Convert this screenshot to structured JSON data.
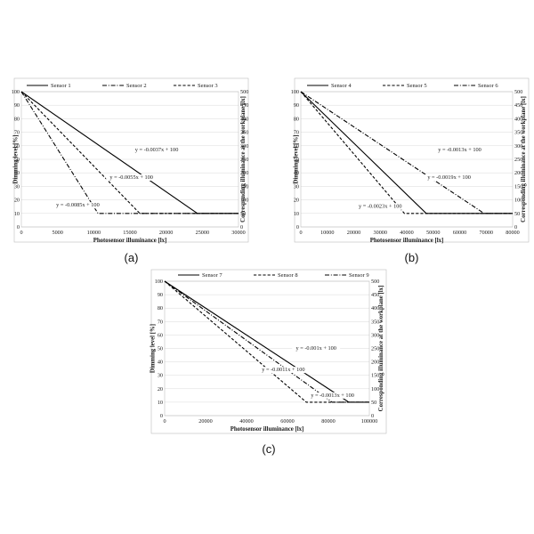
{
  "chart_data": [
    {
      "type": "line",
      "panel_label": "(a)",
      "xlabel": "Photosensor illuminance [lx]",
      "ylabel": "Dimming level [%]",
      "y2label": "Corresponding illuminance at the workplane [lx]",
      "xlim": [
        0,
        30000
      ],
      "ylim": [
        0,
        100
      ],
      "y2lim": [
        0,
        500
      ],
      "x_ticks": [
        0,
        5000,
        10000,
        15000,
        20000,
        25000,
        30000
      ],
      "y_ticks": [
        0,
        10,
        20,
        30,
        40,
        50,
        60,
        70,
        80,
        90,
        100
      ],
      "y2_ticks": [
        0,
        50,
        100,
        150,
        200,
        250,
        300,
        350,
        400,
        450,
        500
      ],
      "x_tick_labels": [
        "0",
        "5000",
        "10000",
        "15000",
        "20000",
        "25000",
        "30000"
      ],
      "y_tick_labels": [
        "0",
        "10",
        "20",
        "30",
        "40",
        "50",
        "60",
        "70",
        "80",
        "90",
        "100"
      ],
      "y2_tick_labels": [
        "0",
        "50",
        "100",
        "150",
        "200",
        "250",
        "300",
        "350",
        "400",
        "450",
        "500"
      ],
      "legend_position": "top",
      "series": [
        {
          "name": "Sensor 1",
          "style": "solid",
          "x": [
            0,
            24324,
            30000
          ],
          "y": [
            100,
            10,
            10
          ]
        },
        {
          "name": "Sensor 2",
          "style": "dashdot",
          "x": [
            0,
            10588,
            30000
          ],
          "y": [
            100,
            10,
            10
          ]
        },
        {
          "name": "Sensor 3",
          "style": "dashed",
          "x": [
            0,
            16364,
            30000
          ],
          "y": [
            100,
            10,
            10
          ]
        }
      ],
      "annotations": [
        {
          "text": "y = -0.0037x + 100",
          "x": 18700,
          "y": 56
        },
        {
          "text": "y = -0.0055x + 100",
          "x": 15200,
          "y": 35.5
        },
        {
          "text": "y = -0.0085x + 100",
          "x": 7800,
          "y": 15
        }
      ]
    },
    {
      "type": "line",
      "panel_label": "(b)",
      "xlabel": "Photosensor illuminance [lx]",
      "ylabel": "Dimming level [%]",
      "y2label": "Corresponding illuminance at the workplane [lx]",
      "xlim": [
        0,
        80000
      ],
      "ylim": [
        0,
        100
      ],
      "y2lim": [
        0,
        500
      ],
      "x_ticks": [
        0,
        10000,
        20000,
        30000,
        40000,
        50000,
        60000,
        70000,
        80000
      ],
      "y_ticks": [
        0,
        10,
        20,
        30,
        40,
        50,
        60,
        70,
        80,
        90,
        100
      ],
      "y2_ticks": [
        0,
        50,
        100,
        150,
        200,
        250,
        300,
        350,
        400,
        450,
        500
      ],
      "x_tick_labels": [
        "0",
        "10000",
        "20000",
        "30000",
        "40000",
        "50000",
        "60000",
        "70000",
        "80000"
      ],
      "y_tick_labels": [
        "0",
        "10",
        "20",
        "30",
        "40",
        "50",
        "60",
        "70",
        "80",
        "90",
        "100"
      ],
      "y2_tick_labels": [
        "0",
        "50",
        "100",
        "150",
        "200",
        "250",
        "300",
        "350",
        "400",
        "450",
        "500"
      ],
      "legend_position": "top",
      "series": [
        {
          "name": "Sensor 4",
          "style": "solid",
          "x": [
            0,
            47368,
            80000
          ],
          "y": [
            100,
            10,
            10
          ]
        },
        {
          "name": "Sensor 5",
          "style": "dashed",
          "x": [
            0,
            39130,
            80000
          ],
          "y": [
            100,
            10,
            10
          ]
        },
        {
          "name": "Sensor 6",
          "style": "dashdot",
          "x": [
            0,
            69231,
            80000
          ],
          "y": [
            100,
            10,
            10
          ]
        }
      ],
      "annotations": [
        {
          "text": "y = -0.0013x + 100",
          "x": 60000,
          "y": 56
        },
        {
          "text": "y = -0.0019x + 100",
          "x": 56000,
          "y": 35.5
        },
        {
          "text": "y = -0.0023x + 100",
          "x": 30000,
          "y": 14
        }
      ]
    },
    {
      "type": "line",
      "panel_label": "(c)",
      "xlabel": "Photosensor illuminance [lx]",
      "ylabel": "Dimming level [%]",
      "y2label": "Corresponding illuminance at the workplane [lx]",
      "xlim": [
        0,
        100000
      ],
      "ylim": [
        0,
        100
      ],
      "y2lim": [
        0,
        500
      ],
      "x_ticks": [
        0,
        20000,
        40000,
        60000,
        80000,
        100000
      ],
      "y_ticks": [
        0,
        10,
        20,
        30,
        40,
        50,
        60,
        70,
        80,
        90,
        100
      ],
      "y2_ticks": [
        0,
        50,
        100,
        150,
        200,
        250,
        300,
        350,
        400,
        450,
        500
      ],
      "x_tick_labels": [
        "0",
        "20000",
        "40000",
        "60000",
        "80000",
        "100000"
      ],
      "y_tick_labels": [
        "0",
        "10",
        "20",
        "30",
        "40",
        "50",
        "60",
        "70",
        "80",
        "90",
        "100"
      ],
      "y2_tick_labels": [
        "0",
        "50",
        "100",
        "150",
        "200",
        "250",
        "300",
        "350",
        "400",
        "450",
        "500"
      ],
      "legend_position": "top",
      "series": [
        {
          "name": "Sensor 7",
          "style": "solid",
          "x": [
            0,
            90000,
            100000
          ],
          "y": [
            100,
            10,
            10
          ]
        },
        {
          "name": "Sensor 8",
          "style": "dashed",
          "x": [
            0,
            69231,
            100000
          ],
          "y": [
            100,
            10,
            10
          ]
        },
        {
          "name": "Sensor 9",
          "style": "dashdot",
          "x": [
            0,
            81818,
            100000
          ],
          "y": [
            100,
            10,
            10
          ]
        }
      ],
      "annotations": [
        {
          "text": "y = -0.001x + 100",
          "x": 74000,
          "y": 49
        },
        {
          "text": "y = -0.0011x + 100",
          "x": 58000,
          "y": 33
        },
        {
          "text": "y = -0.0013x + 100",
          "x": 82000,
          "y": 14
        }
      ]
    }
  ]
}
